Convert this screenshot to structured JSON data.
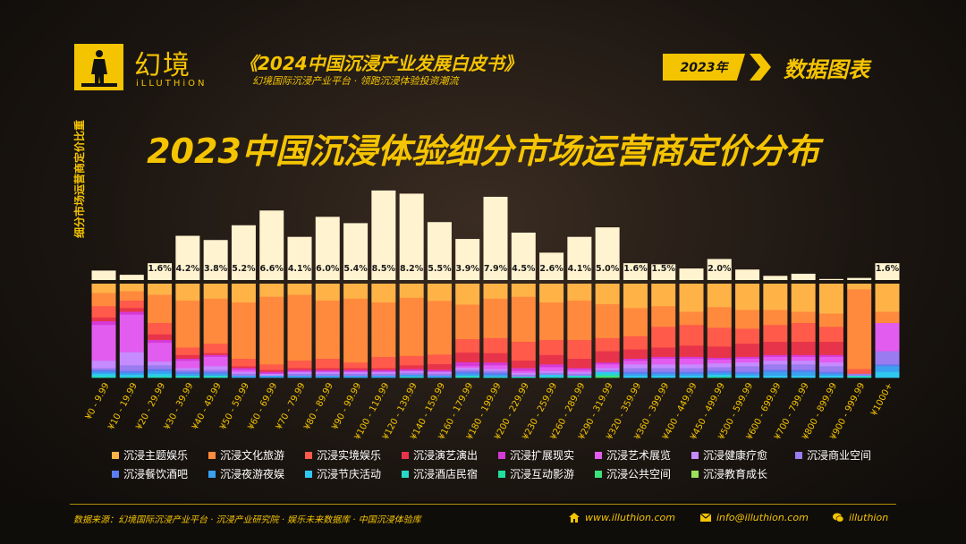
{
  "header": {
    "logo_text": "幻境",
    "logo_sub": "iLLUTHiON",
    "book_title": "《2024中国沉浸产业发展白皮书》",
    "book_subtitle": "幻境国际沉浸产业平台 · 领跑沉浸体验投资潮流",
    "year_badge": "2023年",
    "section_title": "数据图表"
  },
  "chart_data": {
    "type": "bar",
    "title": "2023中国沉浸体验细分市场运营商定价分布",
    "ylabel": "细分市场运营商定价比重",
    "xlabel": "",
    "categories": [
      "¥0 - 9.99",
      "¥10 - 19.99",
      "¥20 - 29.99",
      "¥30 - 39.99",
      "¥40 - 49.99",
      "¥50 - 59.99",
      "¥60 - 69.99",
      "¥70 - 79.99",
      "¥80 - 89.99",
      "¥90 - 99.99",
      "¥100 - 119.99",
      "¥120 - 139.99",
      "¥140 - 159.99",
      "¥160 - 179.99",
      "¥180 - 199.99",
      "¥200 - 229.99",
      "¥230 - 259.99",
      "¥260 - 289.99",
      "¥290 - 319.99",
      "¥320 - 359.99",
      "¥360 - 399.99",
      "¥400 - 449.99",
      "¥450 - 499.99",
      "¥500 - 599.99",
      "¥600 - 699.99",
      "¥700 - 799.99",
      "¥800 - 899.99",
      "¥900 - 999.99",
      "¥1000+"
    ],
    "share_values": [
      0.9,
      0.5,
      1.6,
      4.2,
      3.8,
      5.2,
      6.6,
      4.1,
      6.0,
      5.4,
      8.5,
      8.2,
      5.5,
      3.9,
      7.9,
      4.5,
      2.6,
      4.1,
      5.0,
      1.6,
      1.5,
      1.1,
      2.0,
      1.0,
      0.4,
      0.6,
      0.1,
      0.2,
      1.6
    ],
    "share_labels": [
      "",
      "",
      "1.6%",
      "4.2%",
      "3.8%",
      "5.2%",
      "6.6%",
      "4.1%",
      "6.0%",
      "5.4%",
      "8.5%",
      "8.2%",
      "5.5%",
      "3.9%",
      "7.9%",
      "4.5%",
      "2.6%",
      "4.1%",
      "5.0%",
      "1.6%",
      "1.5%",
      "",
      "2.0%",
      "",
      "",
      "",
      "",
      "",
      "1.6%"
    ],
    "share_ylim": [
      0,
      9
    ],
    "stack_ylim": [
      0,
      100
    ],
    "series": [
      {
        "name": "沉浸主题娱乐",
        "color": "#ffb347",
        "values": [
          10,
          8,
          12,
          18,
          16,
          20,
          14,
          12,
          18,
          16,
          20,
          15,
          18,
          22,
          16,
          14,
          20,
          18,
          22,
          26,
          24,
          30,
          25,
          28,
          28,
          30,
          32,
          6,
          30
        ]
      },
      {
        "name": "沉浸文化旅游",
        "color": "#ff8a3d",
        "values": [
          14,
          10,
          30,
          50,
          48,
          60,
          72,
          70,
          62,
          68,
          58,
          62,
          56,
          36,
          42,
          48,
          40,
          42,
          36,
          30,
          22,
          14,
          22,
          20,
          16,
          12,
          14,
          85,
          12
        ]
      },
      {
        "name": "沉浸实境娱乐",
        "color": "#ff5a4a",
        "values": [
          12,
          8,
          12,
          8,
          10,
          8,
          6,
          8,
          10,
          6,
          12,
          10,
          10,
          14,
          16,
          20,
          16,
          20,
          14,
          14,
          22,
          22,
          20,
          16,
          18,
          20,
          16,
          5,
          0
        ]
      },
      {
        "name": "沉浸演艺演出",
        "color": "#e8344a",
        "values": [
          4,
          4,
          6,
          4,
          2,
          2,
          2,
          2,
          2,
          2,
          2,
          4,
          6,
          10,
          10,
          8,
          10,
          10,
          12,
          10,
          10,
          12,
          12,
          14,
          14,
          14,
          14,
          0,
          0
        ]
      },
      {
        "name": "沉浸扩展现实",
        "color": "#d63ad6",
        "values": [
          4,
          3,
          3,
          2,
          2,
          2,
          2,
          2,
          2,
          2,
          2,
          2,
          2,
          4,
          3,
          3,
          3,
          2,
          2,
          2,
          2,
          2,
          2,
          2,
          2,
          2,
          2,
          0,
          0
        ]
      },
      {
        "name": "沉浸艺术展览",
        "color": "#e35cf0",
        "values": [
          38,
          40,
          20,
          8,
          10,
          2,
          0,
          0,
          0,
          0,
          0,
          0,
          0,
          2,
          4,
          2,
          4,
          2,
          4,
          4,
          6,
          6,
          4,
          4,
          4,
          4,
          6,
          0,
          30
        ]
      },
      {
        "name": "沉浸健康疗愈",
        "color": "#c68bff",
        "values": [
          8,
          14,
          4,
          2,
          4,
          2,
          2,
          2,
          2,
          2,
          2,
          2,
          2,
          2,
          2,
          2,
          2,
          2,
          2,
          4,
          4,
          4,
          4,
          4,
          4,
          4,
          4,
          0,
          0
        ]
      },
      {
        "name": "沉浸商业空间",
        "color": "#9a7bf0",
        "values": [
          2,
          6,
          4,
          2,
          2,
          2,
          0,
          2,
          2,
          2,
          2,
          2,
          2,
          2,
          2,
          2,
          2,
          2,
          2,
          4,
          4,
          4,
          4,
          6,
          6,
          6,
          6,
          2,
          14
        ]
      },
      {
        "name": "沉浸餐饮酒吧",
        "color": "#5a7df0",
        "values": [
          2,
          2,
          2,
          2,
          2,
          0,
          0,
          0,
          0,
          0,
          0,
          0,
          0,
          2,
          2,
          0,
          0,
          0,
          0,
          2,
          2,
          2,
          2,
          2,
          2,
          2,
          2,
          0,
          2
        ]
      },
      {
        "name": "沉浸夜游夜娱",
        "color": "#3aa0f0",
        "values": [
          2,
          2,
          3,
          2,
          2,
          2,
          2,
          2,
          2,
          2,
          2,
          2,
          2,
          2,
          2,
          0,
          0,
          0,
          0,
          2,
          2,
          2,
          2,
          2,
          4,
          4,
          2,
          0,
          6
        ]
      },
      {
        "name": "沉浸节庆活动",
        "color": "#2fc8f0",
        "values": [
          2,
          2,
          2,
          0,
          0,
          0,
          0,
          0,
          0,
          0,
          0,
          0,
          0,
          0,
          0,
          0,
          2,
          0,
          2,
          2,
          2,
          2,
          2,
          2,
          2,
          2,
          2,
          0,
          6
        ]
      },
      {
        "name": "沉浸酒店民宿",
        "color": "#28d8c8",
        "values": [
          2,
          1,
          2,
          2,
          2,
          0,
          0,
          0,
          0,
          0,
          0,
          1,
          0,
          2,
          1,
          1,
          1,
          2,
          2,
          0,
          0,
          0,
          0,
          0,
          0,
          0,
          0,
          2,
          0
        ]
      },
      {
        "name": "沉浸互动影游",
        "color": "#1fe0a0",
        "values": [
          0,
          0,
          0,
          0,
          0,
          0,
          0,
          0,
          0,
          0,
          0,
          0,
          0,
          0,
          0,
          0,
          0,
          0,
          0,
          0,
          0,
          0,
          1,
          0,
          0,
          0,
          0,
          0,
          0
        ]
      },
      {
        "name": "沉浸公共空间",
        "color": "#3ee07a",
        "values": [
          0,
          0,
          0,
          0,
          0,
          0,
          0,
          0,
          0,
          0,
          0,
          0,
          0,
          0,
          0,
          0,
          0,
          0,
          2,
          0,
          0,
          0,
          0,
          0,
          0,
          0,
          0,
          0,
          0
        ]
      },
      {
        "name": "沉浸教育成长",
        "color": "#9ae05a",
        "values": [
          0,
          0,
          0,
          0,
          0,
          0,
          0,
          0,
          0,
          0,
          0,
          0,
          0,
          0,
          0,
          0,
          0,
          0,
          0,
          0,
          0,
          0,
          0,
          0,
          0,
          0,
          0,
          0,
          0
        ]
      }
    ]
  },
  "footer": {
    "source": "数据来源：幻境国际沉浸产业平台 · 沉浸产业研究院 · 娱乐未来数据库 · 中国沉浸体验库",
    "website": "www.illuthion.com",
    "email": "info@illuthion.com",
    "wechat": "illuthion"
  },
  "colors": {
    "accent": "#f5c400",
    "share_bar": "#fff3d0"
  },
  "icons": [
    "logo-figure-icon",
    "chevron-right-icon",
    "home-icon",
    "email-icon",
    "wechat-icon"
  ]
}
